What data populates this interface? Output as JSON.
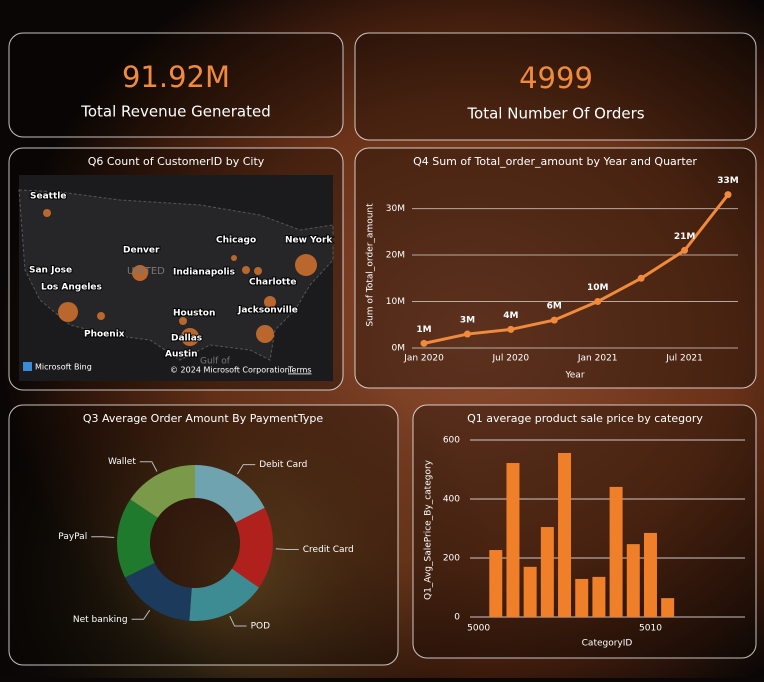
{
  "kpis": [
    {
      "value": "91.92M",
      "label": "Total Revenue Generated"
    },
    {
      "value": "4999",
      "label": "Total Number Of Orders"
    }
  ],
  "map": {
    "title": "Q6 Count of CustomerID by City",
    "cities": [
      "Seattle",
      "Denver",
      "Chicago",
      "New York",
      "San Jose",
      "Indianapolis",
      "Los Angeles",
      "Charlotte",
      "Houston",
      "Jacksonville",
      "Phoenix",
      "Dallas",
      "Austin"
    ],
    "country": "UNITED",
    "gulf": "Gulf of",
    "provider": "Microsoft Bing",
    "copyright": "© 2024 Microsoft Corporation",
    "terms": "Terms"
  },
  "chart_data": [
    {
      "type": "line",
      "title": "Q4 Sum of Total_order_amount by Year and Quarter",
      "x_label": "Year",
      "y_label": "Sum of Total_order_amount",
      "categories": [
        "Jan 2020",
        null,
        "Jul 2020",
        null,
        "Jan 2021",
        null,
        "Jul 2021",
        null
      ],
      "values": [
        1,
        3,
        4,
        6,
        10,
        15,
        21,
        33
      ],
      "value_labels": [
        "1M",
        "3M",
        "4M",
        "6M",
        "10M",
        null,
        "21M",
        "33M"
      ],
      "color": "#f08a3c",
      "ylim": [
        0,
        34
      ],
      "yticks": [
        {
          "value": 0,
          "label": "0M"
        },
        {
          "value": 10,
          "label": "10M"
        },
        {
          "value": 20,
          "label": "20M"
        },
        {
          "value": 30,
          "label": "30M"
        }
      ],
      "grid": true
    },
    {
      "type": "pie",
      "title": "Q3 Average Order Amount By PaymentType",
      "categories": [
        "Debit Card",
        "Credit Card",
        "POD",
        "Net banking",
        "PayPal",
        "Wallet"
      ],
      "values": [
        19000,
        18500,
        17800,
        17900,
        18100,
        16800
      ],
      "colors": [
        "#6fa3b0",
        "#b0201c",
        "#3d8c94",
        "#1c3a5c",
        "#1f7a2e",
        "#7a9a4a"
      ]
    },
    {
      "type": "bar",
      "title": "Q1 average product sale price by category",
      "x_label": "CategoryID",
      "y_label": "Q1_Avg_SalePrice_By_category",
      "x": [
        5001,
        5002,
        5003,
        5004,
        5005,
        5006,
        5007,
        5008,
        5009,
        5010,
        5011
      ],
      "values": [
        227,
        522,
        170,
        305,
        556,
        129,
        136,
        441,
        247,
        285,
        64
      ],
      "color": "#f07f2a",
      "xlim": [
        4999.5,
        5015.5
      ],
      "xticks": [
        5000,
        5010
      ],
      "ylim": [
        0,
        620
      ],
      "yticks": [
        0,
        200,
        400,
        600
      ],
      "grid": true
    }
  ]
}
